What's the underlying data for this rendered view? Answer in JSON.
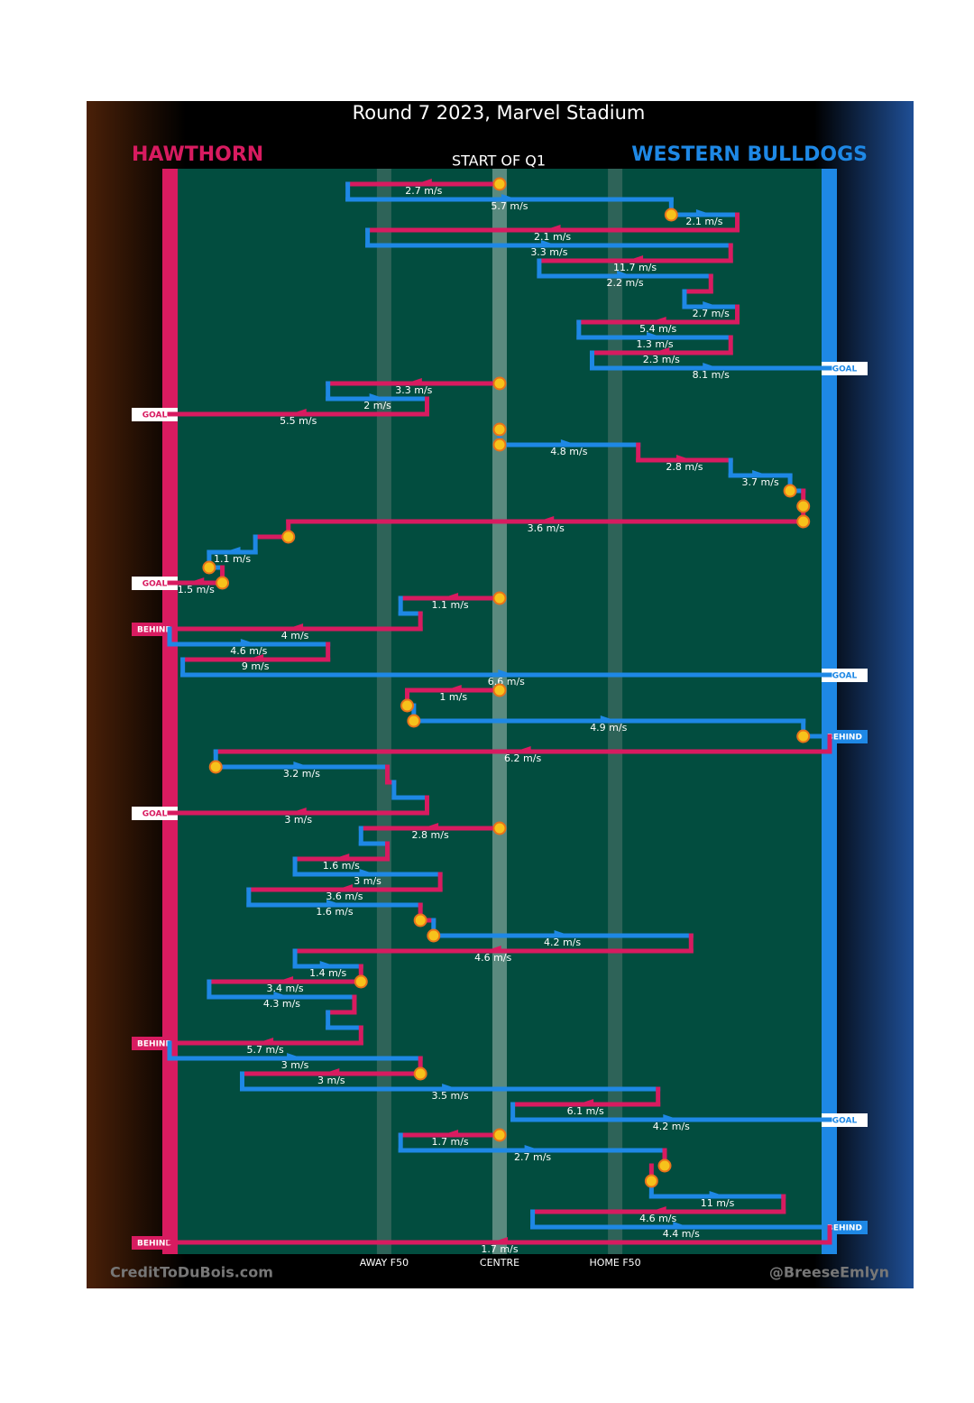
{
  "chart_data": {
    "type": "ball-movement",
    "title": "Round 7 2023, Marvel Stadium",
    "subtitle": "START OF Q1",
    "teams": [
      {
        "name": "HAWTHORN",
        "color": "#d81b60"
      },
      {
        "name": "WESTERN BULLDOGS",
        "color": "#1e88e5"
      }
    ],
    "zones": [
      {
        "label": "AWAY F50",
        "position": 32.5
      },
      {
        "label": "CENTRE",
        "position": 50
      },
      {
        "label": "HOME F50",
        "position": 67.5
      }
    ],
    "credit_left": "CreditToDuBois.com",
    "credit_right": "@BreeseEmlyn",
    "moves": [
      {
        "team": 0,
        "from": 50,
        "to": 27,
        "speed": 2.7,
        "speed_label": "2.7 m/s",
        "stoppage": true
      },
      {
        "team": 1,
        "from": 27,
        "to": 76,
        "speed": 5.7,
        "speed_label": "5.7 m/s"
      },
      {
        "team": 1,
        "from": 76,
        "to": 86,
        "speed": 2.1,
        "speed_label": "2.1 m/s",
        "stoppage": true
      },
      {
        "team": 0,
        "from": 86,
        "to": 30,
        "speed": 2.1,
        "speed_label": "2.1 m/s"
      },
      {
        "team": 1,
        "from": 30,
        "to": 85,
        "speed": 3.3,
        "speed_label": "3.3 m/s"
      },
      {
        "team": 0,
        "from": 85,
        "to": 56,
        "speed": 11.7,
        "speed_label": "11.7 m/s"
      },
      {
        "team": 1,
        "from": 56,
        "to": 82,
        "speed": 2.2,
        "speed_label": "2.2 m/s"
      },
      {
        "team": 0,
        "from": 82,
        "to": 78
      },
      {
        "team": 1,
        "from": 78,
        "to": 86,
        "speed": 2.7,
        "speed_label": "2.7 m/s"
      },
      {
        "team": 0,
        "from": 86,
        "to": 62,
        "speed": 5.4,
        "speed_label": "5.4 m/s"
      },
      {
        "team": 1,
        "from": 62,
        "to": 85,
        "speed": 1.3,
        "speed_label": "1.3 m/s"
      },
      {
        "team": 0,
        "from": 85,
        "to": 64,
        "speed": 2.3,
        "speed_label": "2.3 m/s"
      },
      {
        "team": 1,
        "from": 64,
        "to": 100,
        "speed": 8.1,
        "speed_label": "8.1 m/s",
        "result": "GOAL"
      },
      {
        "team": 0,
        "from": 50,
        "to": 24,
        "speed": 3.3,
        "speed_label": "3.3 m/s",
        "stoppage": true
      },
      {
        "team": 1,
        "from": 24,
        "to": 39,
        "speed": 2,
        "speed_label": "2 m/s"
      },
      {
        "team": 0,
        "from": 39,
        "to": 0,
        "speed": 5.5,
        "speed_label": "5.5 m/s",
        "result": "GOAL"
      },
      {
        "team": 0,
        "from": 50,
        "to": 50,
        "stoppage": true
      },
      {
        "team": 1,
        "from": 50,
        "to": 71,
        "speed": 4.8,
        "speed_label": "4.8 m/s",
        "stoppage": true
      },
      {
        "team": 0,
        "from": 71,
        "to": 85,
        "speed": 2.8,
        "speed_label": "2.8 m/s"
      },
      {
        "team": 1,
        "from": 85,
        "to": 94,
        "speed": 3.7,
        "speed_label": "3.7 m/s"
      },
      {
        "team": 1,
        "from": 94,
        "to": 96,
        "stoppage": true
      },
      {
        "team": 0,
        "from": 96,
        "to": 96,
        "stoppage": true
      },
      {
        "team": 0,
        "from": 96,
        "to": 18,
        "speed": 3.6,
        "speed_label": "3.6 m/s",
        "stoppage": true
      },
      {
        "team": 0,
        "from": 18,
        "to": 13,
        "stoppage": true
      },
      {
        "team": 1,
        "from": 13,
        "to": 6,
        "speed": 1.1,
        "speed_label": "1.1 m/s"
      },
      {
        "team": 1,
        "from": 6,
        "to": 8,
        "stoppage": true
      },
      {
        "team": 0,
        "from": 8,
        "to": 0,
        "speed": 1.5,
        "speed_label": "1.5 m/s",
        "stoppage": true,
        "result": "GOAL"
      },
      {
        "team": 0,
        "from": 50,
        "to": 35,
        "speed": 1.1,
        "speed_label": "1.1 m/s",
        "stoppage": true
      },
      {
        "team": 1,
        "from": 35,
        "to": 38
      },
      {
        "team": 0,
        "from": 38,
        "to": 0,
        "speed": 4,
        "speed_label": "4 m/s",
        "result": "BEHIND"
      },
      {
        "team": 1,
        "from": 0,
        "to": 24,
        "speed": 4.6,
        "speed_label": "4.6 m/s"
      },
      {
        "team": 0,
        "from": 24,
        "to": 2,
        "speed": 9,
        "speed_label": "9 m/s"
      },
      {
        "team": 1,
        "from": 2,
        "to": 100,
        "speed": 6.6,
        "speed_label": "6.6 m/s",
        "result": "GOAL"
      },
      {
        "team": 0,
        "from": 50,
        "to": 36,
        "speed": 1,
        "speed_label": "1 m/s",
        "stoppage": true
      },
      {
        "team": 0,
        "from": 36,
        "to": 36,
        "stoppage": true
      },
      {
        "team": 1,
        "from": 37,
        "to": 96,
        "speed": 4.9,
        "speed_label": "4.9 m/s",
        "stoppage": true
      },
      {
        "team": 1,
        "from": 96,
        "to": 100,
        "stoppage": true,
        "result": "BEHIND"
      },
      {
        "team": 0,
        "from": 100,
        "to": 7,
        "speed": 6.2,
        "speed_label": "6.2 m/s"
      },
      {
        "team": 1,
        "from": 7,
        "to": 33,
        "speed": 3.2,
        "speed_label": "3.2 m/s",
        "stoppage": true
      },
      {
        "team": 0,
        "from": 33,
        "to": 34
      },
      {
        "team": 1,
        "from": 34,
        "to": 39
      },
      {
        "team": 0,
        "from": 39,
        "to": 0,
        "speed": 3,
        "speed_label": "3 m/s",
        "result": "GOAL"
      },
      {
        "team": 0,
        "from": 50,
        "to": 29,
        "speed": 2.8,
        "speed_label": "2.8 m/s",
        "stoppage": true
      },
      {
        "team": 1,
        "from": 29,
        "to": 33
      },
      {
        "team": 0,
        "from": 33,
        "to": 19,
        "speed": 1.6,
        "speed_label": "1.6 m/s"
      },
      {
        "team": 1,
        "from": 19,
        "to": 41,
        "speed": 3,
        "speed_label": "3 m/s"
      },
      {
        "team": 0,
        "from": 41,
        "to": 12,
        "speed": 3.6,
        "speed_label": "3.6 m/s"
      },
      {
        "team": 1,
        "from": 12,
        "to": 38,
        "speed": 1.6,
        "speed_label": "1.6 m/s"
      },
      {
        "team": 0,
        "from": 38,
        "to": 40,
        "stoppage": true
      },
      {
        "team": 1,
        "from": 40,
        "to": 79,
        "speed": 4.2,
        "speed_label": "4.2 m/s",
        "stoppage": true
      },
      {
        "team": 0,
        "from": 79,
        "to": 19,
        "speed": 4.6,
        "speed_label": "4.6 m/s"
      },
      {
        "team": 1,
        "from": 19,
        "to": 29,
        "speed": 1.4,
        "speed_label": "1.4 m/s"
      },
      {
        "team": 0,
        "from": 29,
        "to": 6,
        "speed": 3.4,
        "speed_label": "3.4 m/s",
        "stoppage": true
      },
      {
        "team": 1,
        "from": 6,
        "to": 28,
        "speed": 4.3,
        "speed_label": "4.3 m/s"
      },
      {
        "team": 0,
        "from": 28,
        "to": 24
      },
      {
        "team": 1,
        "from": 24,
        "to": 29
      },
      {
        "team": 0,
        "from": 29,
        "to": 0,
        "speed": 5.7,
        "speed_label": "5.7 m/s",
        "result": "BEHIND"
      },
      {
        "team": 1,
        "from": 0,
        "to": 38,
        "speed": 3,
        "speed_label": "3 m/s"
      },
      {
        "team": 0,
        "from": 38,
        "to": 11,
        "speed": 3,
        "speed_label": "3 m/s",
        "stoppage": true
      },
      {
        "team": 1,
        "from": 11,
        "to": 74,
        "speed": 3.5,
        "speed_label": "3.5 m/s"
      },
      {
        "team": 0,
        "from": 74,
        "to": 52,
        "speed": 6.1,
        "speed_label": "6.1 m/s"
      },
      {
        "team": 1,
        "from": 52,
        "to": 100,
        "speed": 4.2,
        "speed_label": "4.2 m/s",
        "result": "GOAL"
      },
      {
        "team": 0,
        "from": 50,
        "to": 35,
        "speed": 1.7,
        "speed_label": "1.7 m/s",
        "stoppage": true
      },
      {
        "team": 1,
        "from": 35,
        "to": 75,
        "speed": 2.7,
        "speed_label": "2.7 m/s"
      },
      {
        "team": 0,
        "from": 75,
        "to": 75,
        "stoppage": true
      },
      {
        "team": 0,
        "from": 73,
        "to": 73,
        "stoppage": true
      },
      {
        "team": 1,
        "from": 73,
        "to": 93,
        "speed": 11,
        "speed_label": "11 m/s"
      },
      {
        "team": 0,
        "from": 93,
        "to": 55,
        "speed": 4.6,
        "speed_label": "4.6 m/s"
      },
      {
        "team": 1,
        "from": 55,
        "to": 100,
        "speed": 4.4,
        "speed_label": "4.4 m/s",
        "result": "BEHIND"
      },
      {
        "team": 0,
        "from": 100,
        "to": 0,
        "speed": 1.7,
        "speed_label": "1.7 m/s",
        "result": "BEHIND"
      }
    ]
  }
}
